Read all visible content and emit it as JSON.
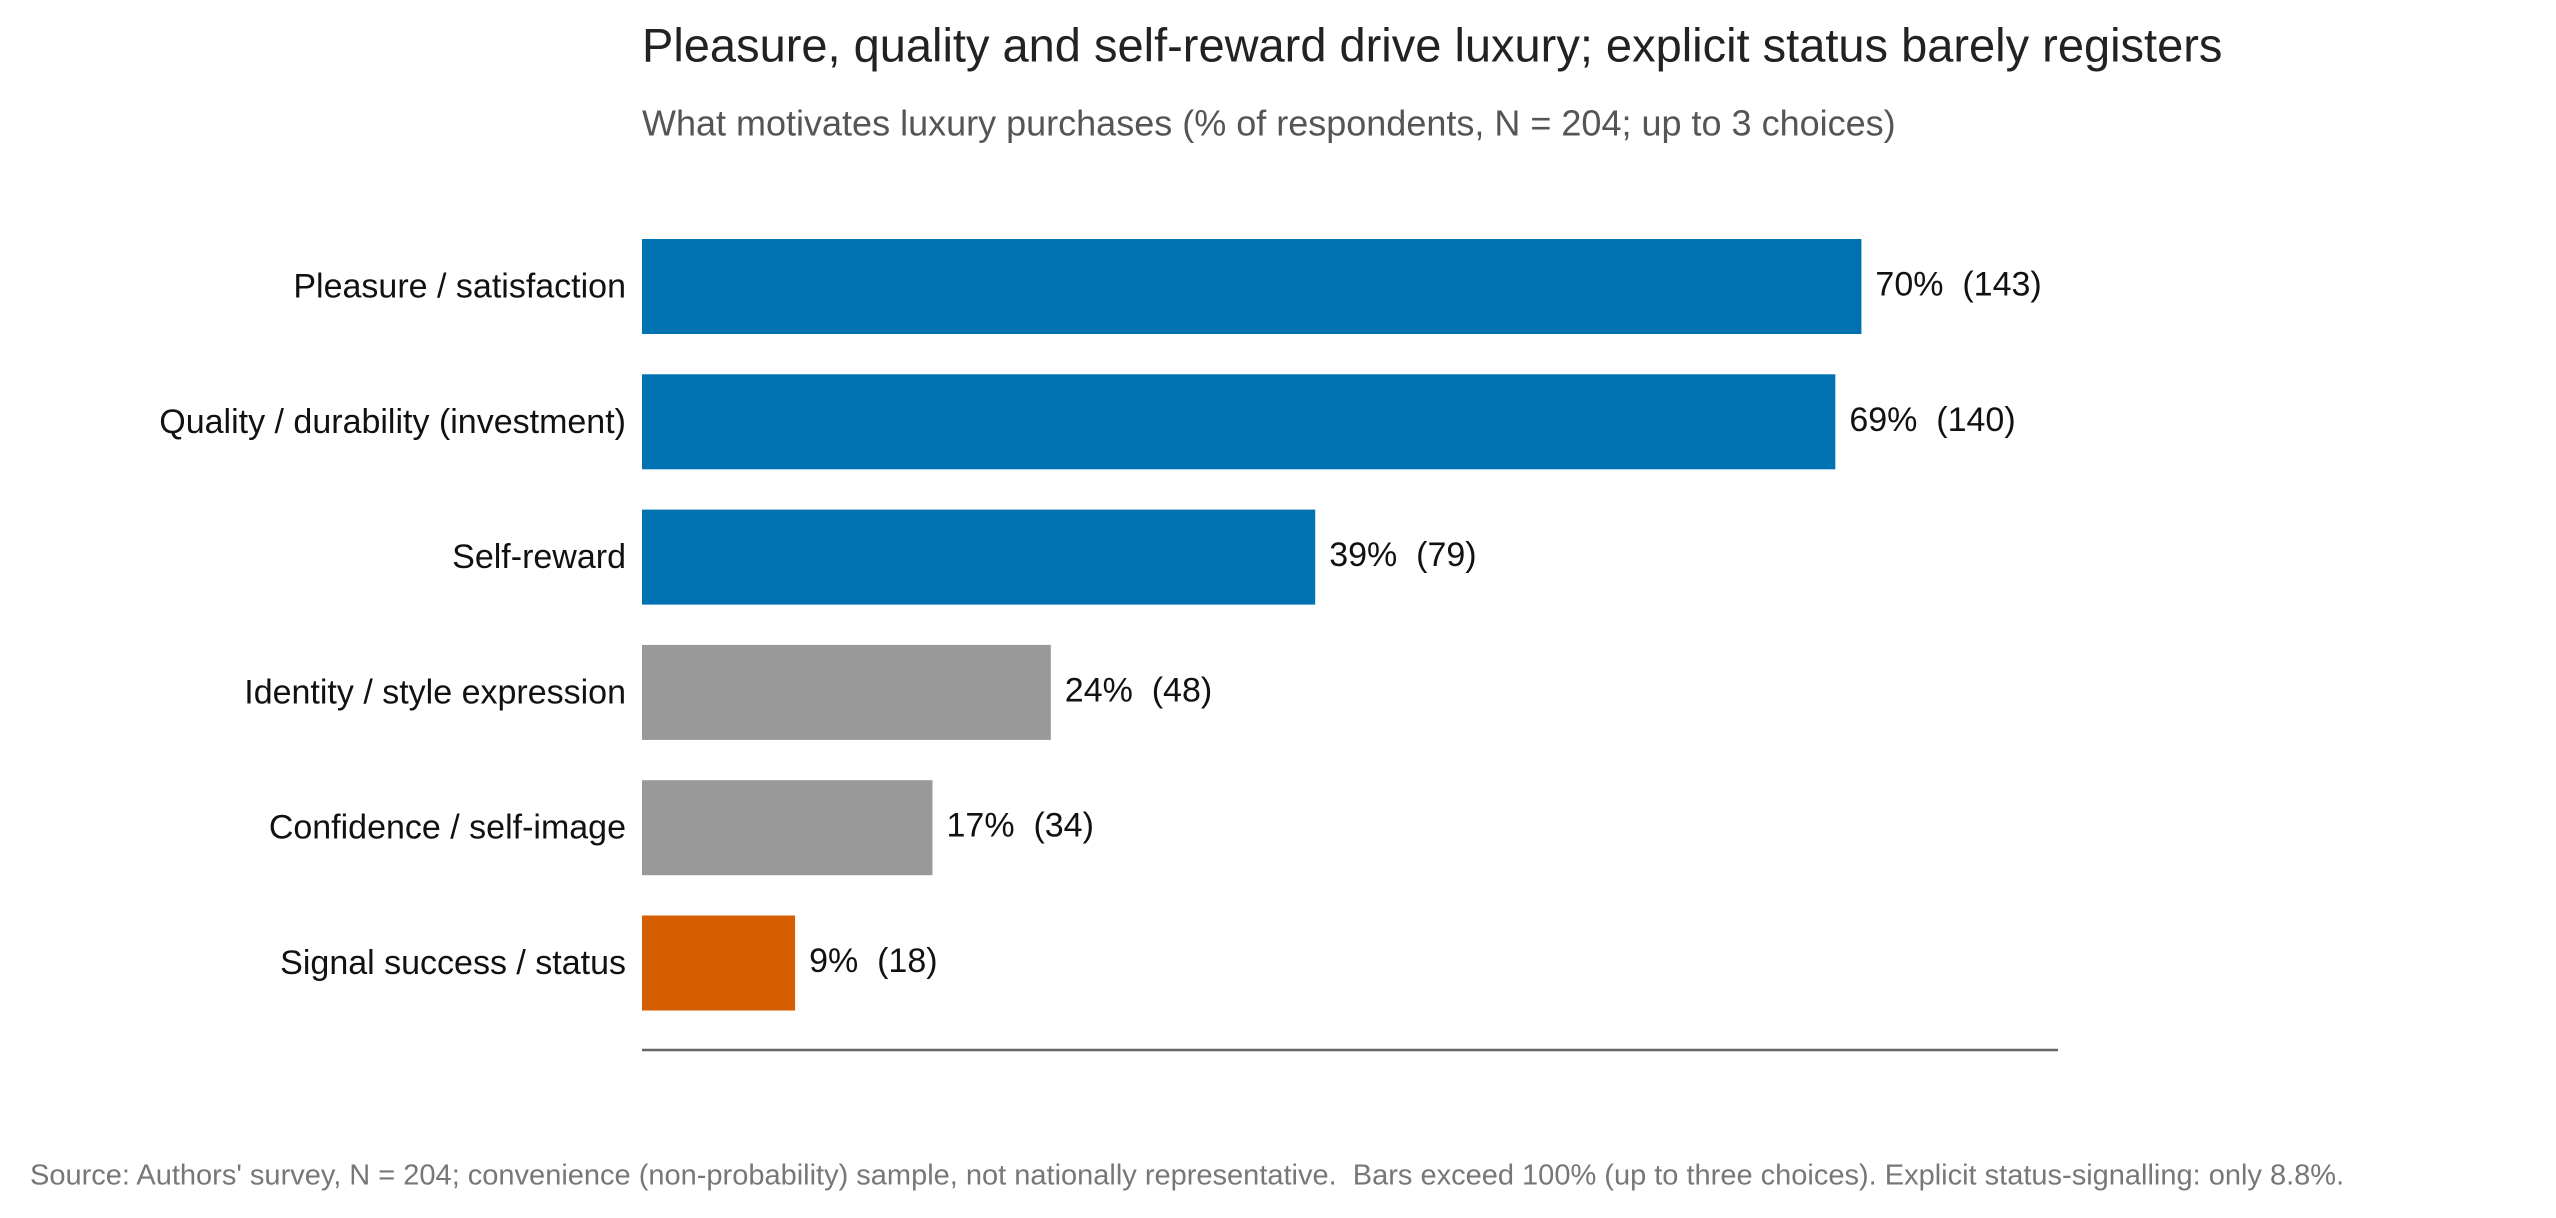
{
  "chart_data": {
    "type": "hbar",
    "title": "Pleasure, quality and self-reward drive luxury; explicit status barely registers",
    "subtitle": "What motivates luxury purchases (% of respondents, N = 204; up to 3 choices)",
    "categories": [
      "Pleasure / satisfaction",
      "Quality / durability (investment)",
      "Self-reward",
      "Identity / style expression",
      "Confidence / self-image",
      "Signal success / status"
    ],
    "values": [
      70.1,
      68.6,
      38.7,
      23.5,
      16.7,
      8.8
    ],
    "value_labels": [
      "70%  (143)",
      "69%  (140)",
      "39%  (79)",
      "24%  (48)",
      "17%  (34)",
      "9%  (18)"
    ],
    "colors": [
      "#0072b2",
      "#0072b2",
      "#0072b2",
      "#999999",
      "#999999",
      "#d55e00"
    ],
    "xlim": [
      0,
      81.4
    ],
    "source": "Source: Authors' survey, N = 204; convenience (non-probability) sample, not nationally representative.  Bars exceed 100% (up to three choices). Explicit status-signalling: only 8.8%."
  }
}
